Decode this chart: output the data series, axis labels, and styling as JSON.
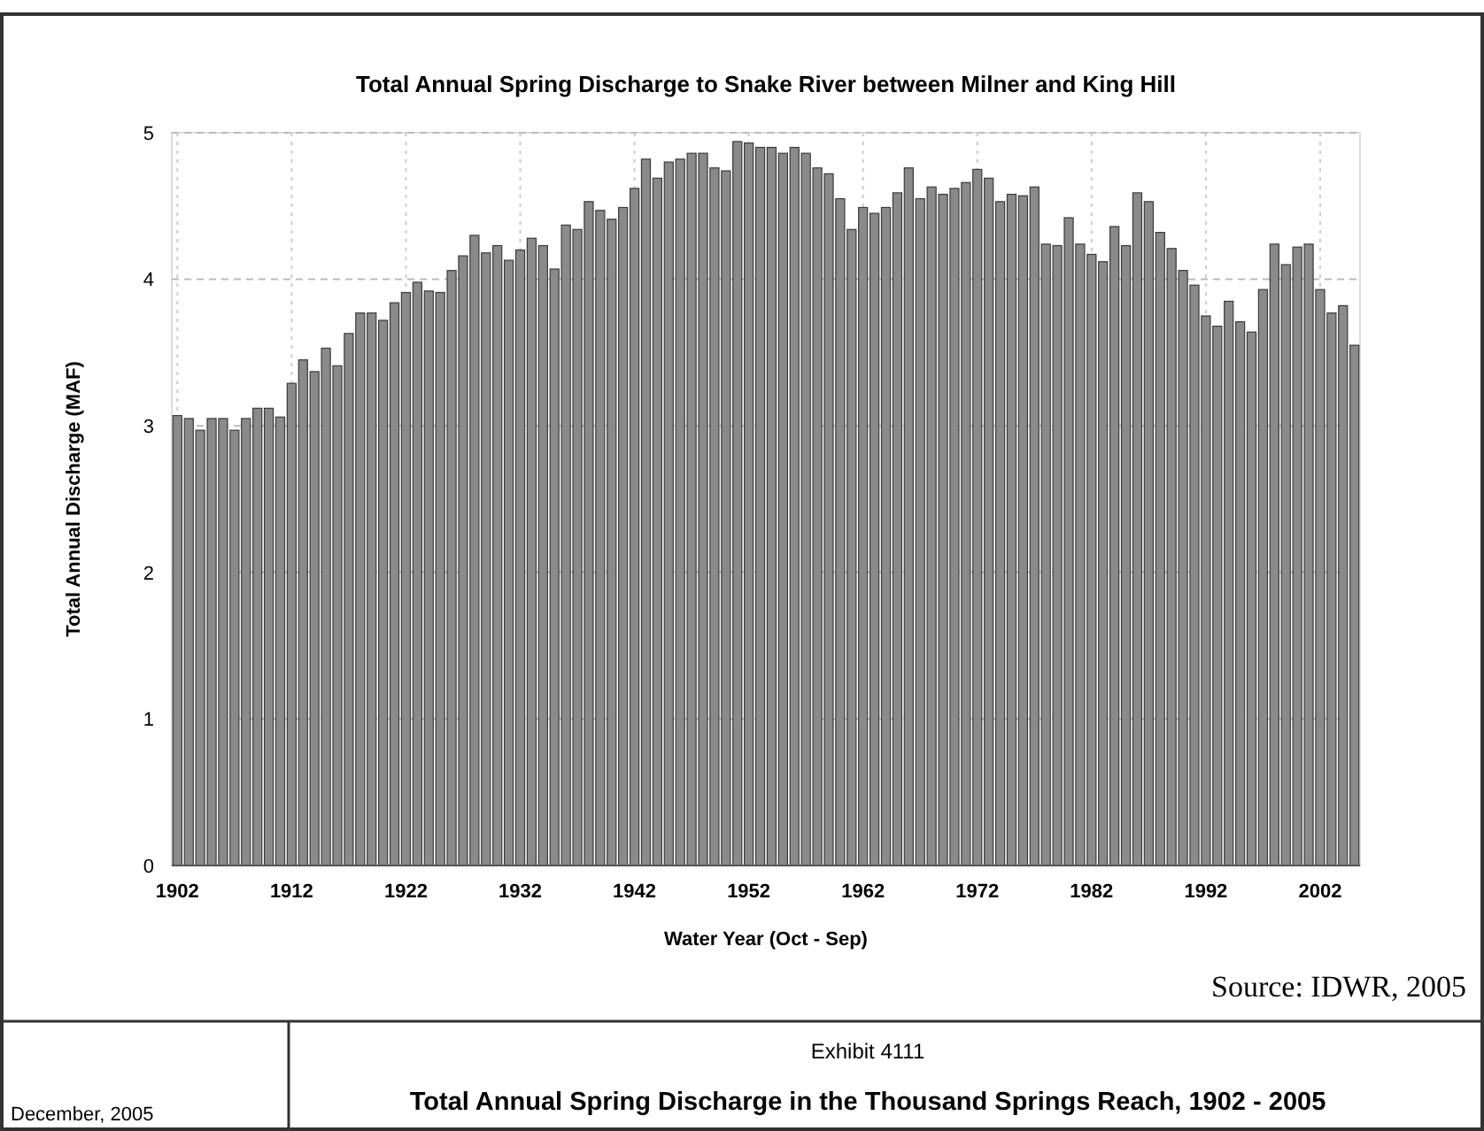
{
  "chart_data": {
    "type": "bar",
    "title": "Total Annual Spring Discharge to Snake River between Milner and King Hill",
    "xlabel": "Water Year (Oct - Sep)",
    "ylabel": "Total Annual Discharge (MAF)",
    "annotations": [
      "Source:  IDWR, 2005",
      "Exhibit 4111",
      "Total Annual Spring Discharge in the Thousand Springs Reach, 1902 - 2005",
      "December, 2005"
    ],
    "categories": [
      "1902",
      null,
      null,
      null,
      null,
      null,
      null,
      null,
      null,
      null,
      "1912",
      null,
      null,
      null,
      null,
      null,
      null,
      null,
      null,
      null,
      "1922",
      null,
      null,
      null,
      null,
      null,
      null,
      null,
      null,
      null,
      "1932",
      null,
      null,
      null,
      null,
      null,
      null,
      null,
      null,
      null,
      "1942",
      null,
      null,
      null,
      null,
      null,
      null,
      null,
      null,
      null,
      "1952",
      null,
      null,
      null,
      null,
      null,
      null,
      null,
      null,
      null,
      "1962",
      null,
      null,
      null,
      null,
      null,
      null,
      null,
      null,
      null,
      "1972",
      null,
      null,
      null,
      null,
      null,
      null,
      null,
      null,
      null,
      "1982",
      null,
      null,
      null,
      null,
      null,
      null,
      null,
      null,
      null,
      "1992",
      null,
      null,
      null,
      null,
      null,
      null,
      null,
      null,
      null,
      "2002",
      null,
      null,
      null
    ],
    "values": [
      3.07,
      3.05,
      2.97,
      3.05,
      3.05,
      2.97,
      3.05,
      3.12,
      3.12,
      3.06,
      3.29,
      3.45,
      3.37,
      3.53,
      3.41,
      3.63,
      3.77,
      3.77,
      3.72,
      3.84,
      3.91,
      3.98,
      3.92,
      3.91,
      4.06,
      4.16,
      4.3,
      4.18,
      4.23,
      4.13,
      4.2,
      4.28,
      4.23,
      4.07,
      4.37,
      4.34,
      4.53,
      4.47,
      4.41,
      4.49,
      4.62,
      4.82,
      4.69,
      4.8,
      4.82,
      4.86,
      4.86,
      4.76,
      4.74,
      4.94,
      4.93,
      4.9,
      4.9,
      4.86,
      4.9,
      4.86,
      4.76,
      4.72,
      4.55,
      4.34,
      4.49,
      4.45,
      4.49,
      4.59,
      4.76,
      4.55,
      4.63,
      4.58,
      4.62,
      4.66,
      4.75,
      4.69,
      4.53,
      4.58,
      4.57,
      4.63,
      4.24,
      4.23,
      4.42,
      4.24,
      4.17,
      4.12,
      4.36,
      4.23,
      4.59,
      4.53,
      4.32,
      4.21,
      4.06,
      3.96,
      3.75,
      3.68,
      3.85,
      3.71,
      3.64,
      3.93,
      4.24,
      4.1,
      4.22,
      4.24,
      3.93,
      3.77,
      3.82,
      3.55
    ],
    "color": "#8a8a8a",
    "ylim": [
      0,
      5
    ],
    "yticks": [
      0,
      1,
      2,
      3,
      4,
      5
    ],
    "grid": true
  }
}
